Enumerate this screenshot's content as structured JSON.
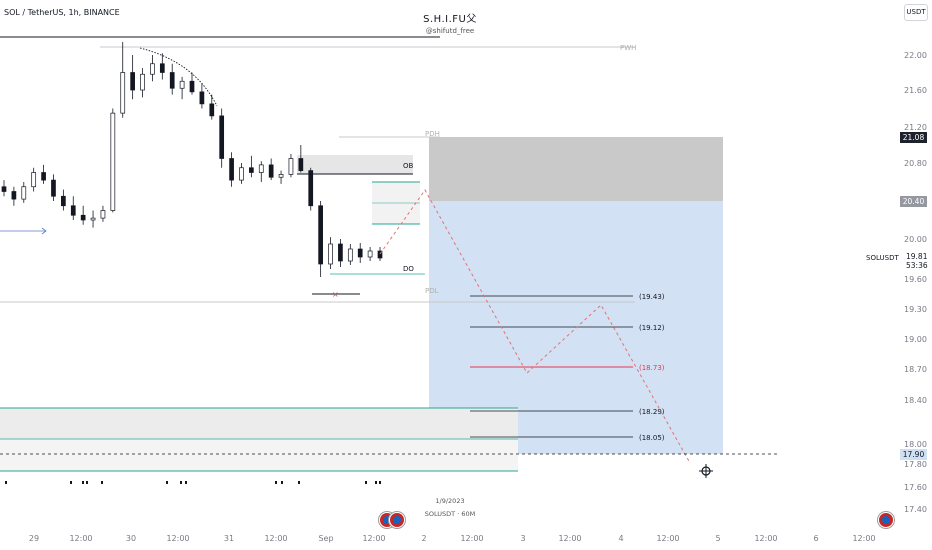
{
  "header": {
    "symbol_title": "SOL / TetherUS, 1h, BINANCE",
    "brand": "S.H.I.FU父",
    "handle": "@shifutd_free",
    "currency_button": "USDT"
  },
  "right_axis": {
    "symbol_label": "SOLUSDT",
    "current_price": "19.81",
    "countdown": "53:36",
    "tag_high": "21.08",
    "tag_mid": "20.40",
    "tag_low": "17.90"
  },
  "bottom_info": {
    "date": "1/9/2023",
    "symbol_interval": "SOLUSDT · 60M"
  },
  "colors": {
    "up_candle": "#ffffff",
    "down_candle": "#131722",
    "stop_zone": "#c8c8c8",
    "target_zone": "#d2e1f3",
    "teal_line": "#26a69a",
    "red_line": "#e53950",
    "projection": "#e57373"
  },
  "chart_data": {
    "type": "candlestick",
    "title": "SOL / TetherUS, 1h, BINANCE",
    "y_axis": {
      "range": [
        17.25,
        22.35
      ],
      "tick_labels": [
        "22.00",
        "21.60",
        "21.20",
        "20.80",
        "20.40",
        "20.00",
        "19.60",
        "19.30",
        "19.00",
        "18.70",
        "18.40",
        "18.00",
        "17.80",
        "17.60",
        "17.40"
      ]
    },
    "x_axis": {
      "tick_labels": [
        "29",
        "12:00",
        "30",
        "12:00",
        "31",
        "12:00",
        "Sep",
        "12:00",
        "2",
        "12:00",
        "3",
        "12:00",
        "4",
        "12:00",
        "5",
        "12:00",
        "6",
        "12:00"
      ]
    },
    "annotations": {
      "levels": [
        "PWH",
        "PDH",
        "OB",
        "DO",
        "PDL"
      ],
      "targets": [
        "(19.43)",
        "(19.12)",
        "(18.73)",
        "(18.29)",
        "(18.05)"
      ],
      "target_values": [
        19.43,
        19.12,
        18.73,
        18.29,
        18.05
      ],
      "stop_zone": [
        20.4,
        21.08
      ],
      "target_zone_bottom": 17.9,
      "projection_path": [
        20.55,
        18.65,
        19.33,
        17.8
      ]
    },
    "candles_approx": [
      [
        20.55,
        20.62,
        20.45,
        20.5
      ],
      [
        20.5,
        20.55,
        20.35,
        20.42
      ],
      [
        20.42,
        20.6,
        20.38,
        20.55
      ],
      [
        20.55,
        20.75,
        20.5,
        20.7
      ],
      [
        20.7,
        20.78,
        20.58,
        20.62
      ],
      [
        20.62,
        20.68,
        20.4,
        20.45
      ],
      [
        20.45,
        20.52,
        20.3,
        20.35
      ],
      [
        20.35,
        20.45,
        20.2,
        20.25
      ],
      [
        20.25,
        20.35,
        20.15,
        20.2
      ],
      [
        20.2,
        20.3,
        20.12,
        20.22
      ],
      [
        20.22,
        20.35,
        20.18,
        20.3
      ],
      [
        20.3,
        21.4,
        20.28,
        21.35
      ],
      [
        21.35,
        22.15,
        21.3,
        21.8
      ],
      [
        21.8,
        22.0,
        21.5,
        21.6
      ],
      [
        21.6,
        21.85,
        21.52,
        21.78
      ],
      [
        21.78,
        22.0,
        21.7,
        21.9
      ],
      [
        21.9,
        22.02,
        21.72,
        21.8
      ],
      [
        21.8,
        21.9,
        21.55,
        21.62
      ],
      [
        21.62,
        21.75,
        21.5,
        21.7
      ],
      [
        21.7,
        21.8,
        21.55,
        21.58
      ],
      [
        21.58,
        21.68,
        21.4,
        21.45
      ],
      [
        21.45,
        21.55,
        21.28,
        21.32
      ],
      [
        21.32,
        21.4,
        20.75,
        20.85
      ],
      [
        20.85,
        20.92,
        20.55,
        20.62
      ],
      [
        20.62,
        20.8,
        20.58,
        20.75
      ],
      [
        20.75,
        20.88,
        20.65,
        20.7
      ],
      [
        20.7,
        20.82,
        20.6,
        20.78
      ],
      [
        20.78,
        20.85,
        20.62,
        20.65
      ],
      [
        20.65,
        20.72,
        20.58,
        20.68
      ],
      [
        20.68,
        20.9,
        20.65,
        20.85
      ],
      [
        20.85,
        21.0,
        20.7,
        20.72
      ],
      [
        20.72,
        20.75,
        20.3,
        20.35
      ],
      [
        20.35,
        20.4,
        19.62,
        19.75
      ],
      [
        19.75,
        20.02,
        19.7,
        19.95
      ],
      [
        19.95,
        20.0,
        19.72,
        19.78
      ],
      [
        19.78,
        19.95,
        19.74,
        19.9
      ],
      [
        19.9,
        19.96,
        19.76,
        19.82
      ],
      [
        19.82,
        19.92,
        19.78,
        19.88
      ],
      [
        19.88,
        19.92,
        19.78,
        19.81
      ]
    ]
  }
}
